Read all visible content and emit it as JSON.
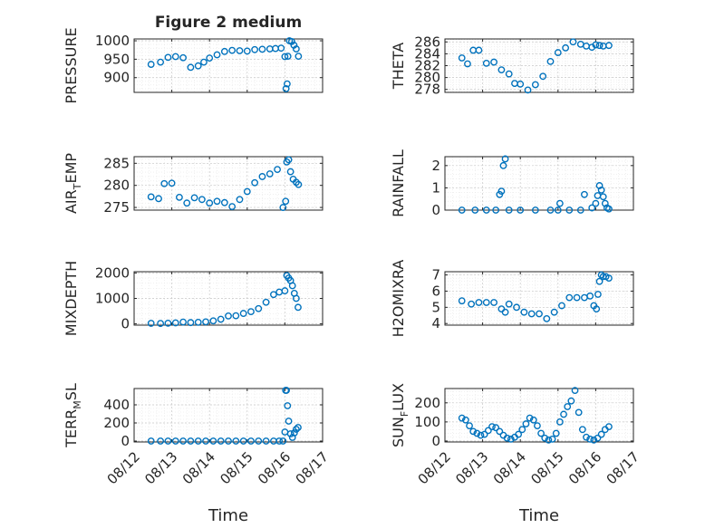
{
  "figure": {
    "title": "Figure 2 medium",
    "x_ticks": [
      "08/12",
      "08/13",
      "08/14",
      "08/15",
      "08/16",
      "08/17"
    ],
    "x_label": "Time",
    "marker_color": "#0072BD",
    "grid": "major and minor, dotted",
    "layout": "4 rows x 2 columns"
  },
  "chart_data": [
    {
      "type": "scatter",
      "ylabel_main": "PRESSURE",
      "ylabel_sub": "",
      "ylim": [
        860,
        1005
      ],
      "yticks": [
        900,
        950,
        1000
      ],
      "x": [
        12.45,
        12.7,
        12.9,
        13.1,
        13.3,
        13.5,
        13.7,
        13.85,
        14.0,
        14.2,
        14.4,
        14.6,
        14.8,
        15.0,
        15.2,
        15.4,
        15.6,
        15.75,
        15.9,
        16.0,
        16.03,
        16.06,
        16.08,
        16.12,
        16.18,
        16.24,
        16.3,
        16.36
      ],
      "y": [
        936,
        942,
        955,
        957,
        954,
        928,
        932,
        942,
        953,
        962,
        971,
        974,
        973,
        972,
        976,
        977,
        978,
        979,
        980,
        957,
        870,
        883,
        958,
        1000,
        998,
        988,
        978,
        958
      ]
    },
    {
      "type": "scatter",
      "ylabel_main": "THETA",
      "ylabel_sub": "",
      "ylim": [
        277.5,
        286.5
      ],
      "yticks": [
        278,
        280,
        282,
        284,
        286
      ],
      "x": [
        12.45,
        12.6,
        12.75,
        12.9,
        13.1,
        13.3,
        13.5,
        13.7,
        13.85,
        14.0,
        14.2,
        14.4,
        14.6,
        14.8,
        15.0,
        15.2,
        15.4,
        15.6,
        15.75,
        15.9,
        16.0,
        16.1,
        16.2,
        16.35
      ],
      "y": [
        283.3,
        282.3,
        284.6,
        284.6,
        282.4,
        282.6,
        281.3,
        280.6,
        279.0,
        278.9,
        277.9,
        278.8,
        280.2,
        282.7,
        284.2,
        285.0,
        286.0,
        285.6,
        285.3,
        285.1,
        285.5,
        285.4,
        285.3,
        285.4
      ]
    },
    {
      "type": "scatter",
      "ylabel_main": "AIR",
      "ylabel_sub": "T",
      "ylabel_tail": "EMP",
      "ylim": [
        274.4,
        286.5
      ],
      "yticks": [
        275,
        280,
        285
      ],
      "x": [
        12.45,
        12.65,
        12.8,
        13.0,
        13.2,
        13.4,
        13.6,
        13.8,
        14.0,
        14.2,
        14.4,
        14.6,
        14.8,
        15.0,
        15.2,
        15.4,
        15.6,
        15.8,
        15.95,
        16.02,
        16.05,
        16.1,
        16.15,
        16.22,
        16.3,
        16.36
      ],
      "y": [
        277.4,
        277.0,
        280.4,
        280.5,
        277.3,
        276.0,
        277.2,
        276.8,
        276.0,
        276.4,
        276.1,
        275.2,
        276.8,
        278.6,
        280.6,
        282.0,
        282.6,
        283.6,
        275.0,
        276.4,
        285.3,
        285.8,
        283.1,
        281.4,
        280.7,
        280.2
      ]
    },
    {
      "type": "scatter",
      "ylabel_main": "RAINFALL",
      "ylabel_sub": "",
      "ylim": [
        0,
        2.4
      ],
      "yticks": [
        0,
        1,
        2
      ],
      "x": [
        12.45,
        12.8,
        13.1,
        13.35,
        13.45,
        13.5,
        13.55,
        13.6,
        13.7,
        14.0,
        14.4,
        14.8,
        15.0,
        15.05,
        15.3,
        15.6,
        15.7,
        15.9,
        16.0,
        16.05,
        16.1,
        16.15,
        16.2,
        16.25,
        16.3,
        16.35
      ],
      "y": [
        0,
        0,
        0,
        0,
        0.7,
        0.85,
        2.0,
        2.3,
        0,
        0,
        0,
        0,
        0,
        0.3,
        0,
        0,
        0.7,
        0.1,
        0.3,
        0.65,
        1.1,
        0.9,
        0.6,
        0.3,
        0.1,
        0.05
      ]
    },
    {
      "type": "scatter",
      "ylabel_main": "MIXDEPTH",
      "ylabel_sub": "",
      "ylim": [
        -50,
        2050
      ],
      "yticks": [
        0,
        1000,
        2000
      ],
      "x": [
        12.45,
        12.7,
        12.9,
        13.1,
        13.3,
        13.5,
        13.7,
        13.9,
        14.1,
        14.3,
        14.5,
        14.7,
        14.9,
        15.1,
        15.3,
        15.5,
        15.7,
        15.85,
        16.0,
        16.05,
        16.1,
        16.15,
        16.2,
        16.25,
        16.3,
        16.35
      ],
      "y": [
        20,
        15,
        25,
        40,
        70,
        50,
        60,
        80,
        120,
        180,
        310,
        320,
        410,
        480,
        600,
        850,
        1150,
        1250,
        1300,
        1900,
        1800,
        1700,
        1500,
        1200,
        1000,
        650
      ]
    },
    {
      "type": "scatter",
      "ylabel_main": "H2OMIXRA",
      "ylabel_sub": "",
      "ylim": [
        3.9,
        7.2
      ],
      "yticks": [
        4,
        5,
        6,
        7
      ],
      "x": [
        12.45,
        12.7,
        12.9,
        13.1,
        13.3,
        13.5,
        13.6,
        13.7,
        13.9,
        14.1,
        14.3,
        14.5,
        14.7,
        14.9,
        15.1,
        15.3,
        15.5,
        15.7,
        15.85,
        15.95,
        16.02,
        16.06,
        16.1,
        16.15,
        16.2,
        16.27,
        16.35
      ],
      "y": [
        5.4,
        5.2,
        5.3,
        5.3,
        5.3,
        4.9,
        4.7,
        5.2,
        5.0,
        4.7,
        4.6,
        4.6,
        4.3,
        4.7,
        5.1,
        5.6,
        5.6,
        5.6,
        5.7,
        5.1,
        4.9,
        5.8,
        6.6,
        7.0,
        6.9,
        6.9,
        6.8
      ]
    },
    {
      "type": "scatter",
      "ylabel_main": "TERR",
      "ylabel_sub": "M",
      "ylabel_tail": "SL",
      "ylim": [
        -10,
        580
      ],
      "yticks": [
        0,
        200,
        400
      ],
      "x": [
        12.45,
        12.7,
        12.9,
        13.1,
        13.3,
        13.5,
        13.7,
        13.9,
        14.1,
        14.3,
        14.5,
        14.7,
        14.9,
        15.1,
        15.3,
        15.5,
        15.7,
        15.85,
        15.95,
        16.0,
        16.02,
        16.04,
        16.07,
        16.1,
        16.15,
        16.2,
        16.25,
        16.3,
        16.35
      ],
      "y": [
        0,
        0,
        0,
        0,
        0,
        0,
        0,
        0,
        0,
        0,
        0,
        0,
        0,
        0,
        0,
        0,
        0,
        0,
        0,
        100,
        560,
        560,
        390,
        220,
        80,
        40,
        90,
        130,
        150
      ]
    },
    {
      "type": "scatter",
      "ylabel_main": "SUN",
      "ylabel_sub": "F",
      "ylabel_tail": "LUX",
      "ylim": [
        -5,
        275
      ],
      "yticks": [
        0,
        100,
        200
      ],
      "x": [
        12.45,
        12.55,
        12.65,
        12.75,
        12.85,
        12.95,
        13.05,
        13.15,
        13.25,
        13.35,
        13.45,
        13.55,
        13.65,
        13.75,
        13.85,
        13.95,
        14.05,
        14.15,
        14.25,
        14.35,
        14.45,
        14.55,
        14.65,
        14.75,
        14.85,
        14.95,
        15.05,
        15.15,
        15.25,
        15.35,
        15.45,
        15.55,
        15.65,
        15.75,
        15.85,
        15.95,
        16.05,
        16.15,
        16.25,
        16.35
      ],
      "y": [
        120,
        110,
        80,
        50,
        40,
        30,
        35,
        55,
        75,
        70,
        50,
        30,
        15,
        10,
        20,
        35,
        60,
        90,
        120,
        110,
        80,
        40,
        15,
        5,
        10,
        40,
        100,
        140,
        180,
        210,
        265,
        150,
        60,
        20,
        10,
        5,
        15,
        35,
        60,
        75
      ]
    }
  ]
}
